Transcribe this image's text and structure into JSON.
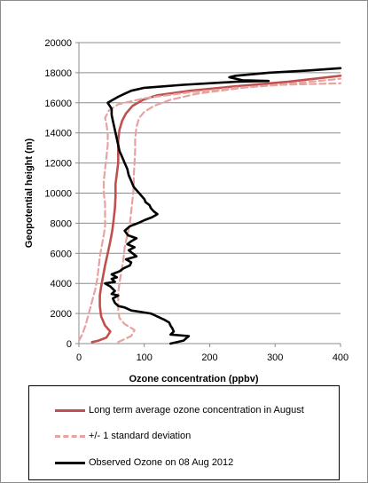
{
  "chart_data": {
    "type": "line",
    "xlabel": "Ozone concentration  (ppbv)",
    "ylabel": "Geopotential height (m)",
    "xlim": [
      0,
      400
    ],
    "ylim": [
      0,
      20000
    ],
    "x_ticks": [
      "0",
      "100",
      "200",
      "300",
      "400"
    ],
    "y_ticks": [
      "0",
      "2000",
      "4000",
      "6000",
      "8000",
      "10000",
      "12000",
      "14000",
      "16000",
      "18000",
      "20000"
    ],
    "grid": "horizontal",
    "legend_position": "bottom",
    "series": [
      {
        "name": "Long term average ozone concentration in August",
        "color": "#c0504d",
        "style": "solid",
        "points": [
          [
            20,
            100
          ],
          [
            30,
            200
          ],
          [
            42,
            400
          ],
          [
            48,
            800
          ],
          [
            40,
            1200
          ],
          [
            34,
            1800
          ],
          [
            32,
            2500
          ],
          [
            32,
            3200
          ],
          [
            34,
            3800
          ],
          [
            37,
            4500
          ],
          [
            40,
            5200
          ],
          [
            44,
            6000
          ],
          [
            48,
            6800
          ],
          [
            51,
            7500
          ],
          [
            53,
            8200
          ],
          [
            55,
            9000
          ],
          [
            56,
            9800
          ],
          [
            56,
            10600
          ],
          [
            58,
            11300
          ],
          [
            60,
            12000
          ],
          [
            60,
            12800
          ],
          [
            60,
            13500
          ],
          [
            62,
            14200
          ],
          [
            66,
            14800
          ],
          [
            72,
            15300
          ],
          [
            82,
            15800
          ],
          [
            98,
            16200
          ],
          [
            120,
            16500
          ],
          [
            170,
            16800
          ],
          [
            240,
            17100
          ],
          [
            320,
            17400
          ],
          [
            400,
            17800
          ]
        ]
      },
      {
        "name": "+/- 1 standard deviation",
        "color": "#e6a3a0",
        "style": "dashed",
        "points": [
          [
            0,
            200
          ],
          [
            5,
            600
          ],
          [
            10,
            1200
          ],
          [
            15,
            2000
          ],
          [
            20,
            2800
          ],
          [
            25,
            3600
          ],
          [
            28,
            4300
          ],
          [
            30,
            5000
          ],
          [
            32,
            5800
          ],
          [
            35,
            6500
          ],
          [
            38,
            7200
          ],
          [
            40,
            7800
          ],
          [
            40,
            8500
          ],
          [
            40,
            9300
          ],
          [
            38,
            10000
          ],
          [
            38,
            10800
          ],
          [
            40,
            11600
          ],
          [
            42,
            12400
          ],
          [
            44,
            13200
          ],
          [
            44,
            14000
          ],
          [
            42,
            14600
          ],
          [
            40,
            15000
          ],
          [
            46,
            15500
          ],
          [
            60,
            15900
          ],
          [
            100,
            16300
          ],
          [
            170,
            16700
          ],
          [
            240,
            17000
          ],
          [
            310,
            17200
          ],
          [
            400,
            17300
          ]
        ]
      },
      {
        "name": "+/- 1 standard deviation",
        "color": "#e6a3a0",
        "style": "dashed",
        "points": [
          [
            60,
            100
          ],
          [
            80,
            500
          ],
          [
            85,
            900
          ],
          [
            70,
            1300
          ],
          [
            62,
            1700
          ],
          [
            60,
            2200
          ],
          [
            60,
            2800
          ],
          [
            60,
            3400
          ],
          [
            62,
            4000
          ],
          [
            65,
            4800
          ],
          [
            68,
            5600
          ],
          [
            70,
            6400
          ],
          [
            74,
            7200
          ],
          [
            78,
            8000
          ],
          [
            80,
            8800
          ],
          [
            82,
            9600
          ],
          [
            84,
            10400
          ],
          [
            84,
            11200
          ],
          [
            85,
            12000
          ],
          [
            86,
            12800
          ],
          [
            86,
            13600
          ],
          [
            88,
            14400
          ],
          [
            92,
            15000
          ],
          [
            100,
            15400
          ],
          [
            115,
            15800
          ],
          [
            140,
            16200
          ],
          [
            180,
            16600
          ],
          [
            250,
            17000
          ],
          [
            330,
            17300
          ],
          [
            400,
            17600
          ]
        ]
      },
      {
        "name": "Observed Ozone on 08 Aug 2012",
        "color": "#000000",
        "style": "solid",
        "points": [
          [
            140,
            0
          ],
          [
            160,
            200
          ],
          [
            168,
            500
          ],
          [
            140,
            600
          ],
          [
            145,
            800
          ],
          [
            143,
            1000
          ],
          [
            140,
            1200
          ],
          [
            138,
            1400
          ],
          [
            130,
            1600
          ],
          [
            120,
            1800
          ],
          [
            110,
            2000
          ],
          [
            95,
            2100
          ],
          [
            80,
            2200
          ],
          [
            70,
            2400
          ],
          [
            60,
            2500
          ],
          [
            55,
            2700
          ],
          [
            52,
            3000
          ],
          [
            60,
            3200
          ],
          [
            50,
            3300
          ],
          [
            55,
            3500
          ],
          [
            48,
            3800
          ],
          [
            40,
            4000
          ],
          [
            55,
            4100
          ],
          [
            50,
            4300
          ],
          [
            58,
            4400
          ],
          [
            50,
            4600
          ],
          [
            62,
            4800
          ],
          [
            68,
            5000
          ],
          [
            78,
            5200
          ],
          [
            80,
            5400
          ],
          [
            72,
            5600
          ],
          [
            88,
            5800
          ],
          [
            82,
            6000
          ],
          [
            76,
            6200
          ],
          [
            85,
            6400
          ],
          [
            74,
            6600
          ],
          [
            80,
            6800
          ],
          [
            88,
            7000
          ],
          [
            75,
            7200
          ],
          [
            70,
            7500
          ],
          [
            78,
            7800
          ],
          [
            90,
            8000
          ],
          [
            100,
            8200
          ],
          [
            112,
            8400
          ],
          [
            120,
            8600
          ],
          [
            114,
            8800
          ],
          [
            110,
            9000
          ],
          [
            108,
            9200
          ],
          [
            102,
            9400
          ],
          [
            100,
            9600
          ],
          [
            96,
            9800
          ],
          [
            92,
            10000
          ],
          [
            88,
            10200
          ],
          [
            84,
            10400
          ],
          [
            80,
            10800
          ],
          [
            76,
            11200
          ],
          [
            74,
            11600
          ],
          [
            70,
            12000
          ],
          [
            66,
            12400
          ],
          [
            62,
            12800
          ],
          [
            60,
            13200
          ],
          [
            58,
            13600
          ],
          [
            56,
            14000
          ],
          [
            54,
            14400
          ],
          [
            52,
            14800
          ],
          [
            50,
            15200
          ],
          [
            50,
            15600
          ],
          [
            44,
            16000
          ],
          [
            52,
            16200
          ],
          [
            60,
            16400
          ],
          [
            70,
            16600
          ],
          [
            80,
            16800
          ],
          [
            100,
            17000
          ],
          [
            160,
            17200
          ],
          [
            240,
            17400
          ],
          [
            290,
            17450
          ],
          [
            250,
            17500
          ],
          [
            230,
            17700
          ],
          [
            240,
            17800
          ],
          [
            290,
            18000
          ],
          [
            350,
            18150
          ],
          [
            400,
            18300
          ]
        ]
      }
    ]
  }
}
